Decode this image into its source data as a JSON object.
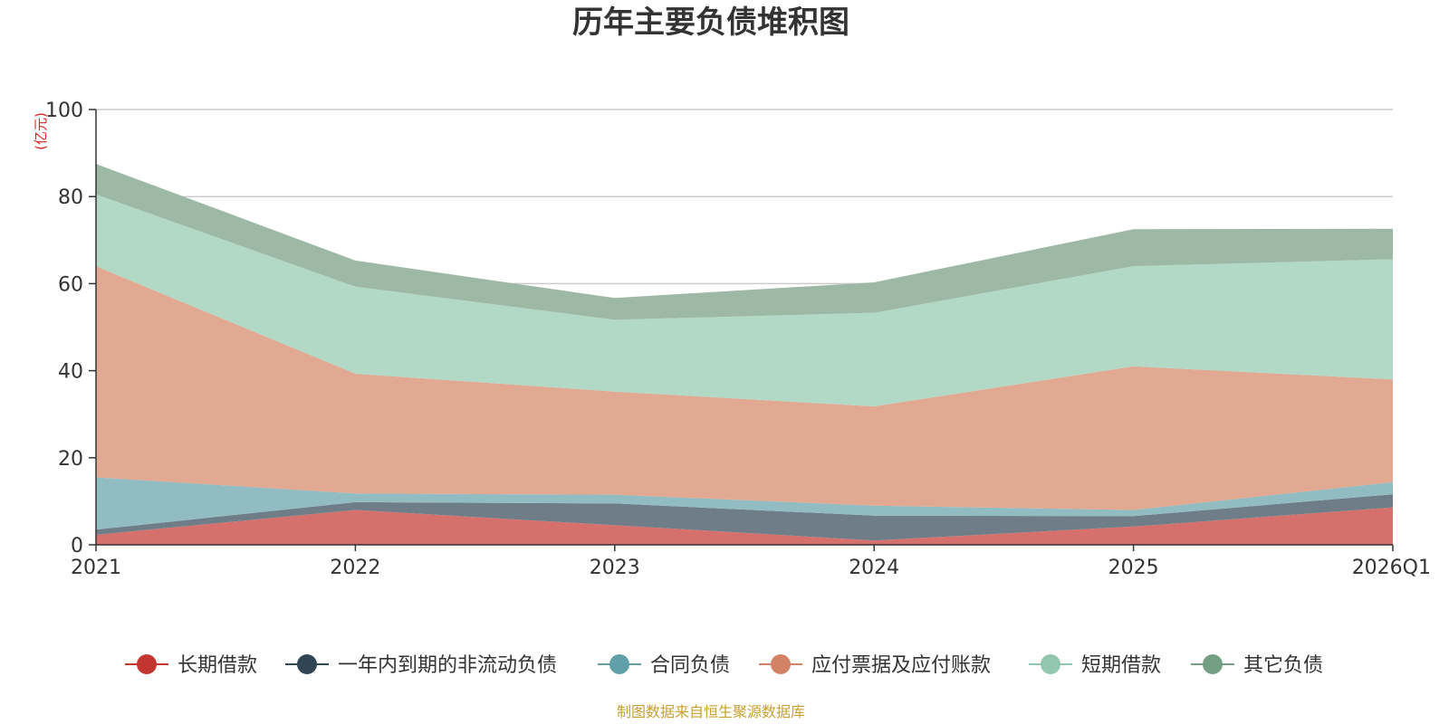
{
  "chart_data": {
    "type": "area",
    "stacked": true,
    "title": "历年主要负债堆积图",
    "unit_label": "(亿元)",
    "x": [
      "2021",
      "2022",
      "2023",
      "2024",
      "2025",
      "2026Q1"
    ],
    "ylim": [
      0,
      100
    ],
    "yticks": [
      "0",
      "20",
      "40",
      "60",
      "80",
      "100"
    ],
    "grid": true,
    "legend_position": "bottom",
    "series": [
      {
        "name": "长期借款",
        "color": "#c23531",
        "fill": "#d5706c",
        "values": [
          2.3,
          8.0,
          4.5,
          1.0,
          4.2,
          8.6
        ]
      },
      {
        "name": "一年内到期的非流动负债",
        "color": "#2f4554",
        "fill": "#6e7d88",
        "values": [
          1.2,
          1.8,
          5.0,
          5.7,
          2.4,
          3.0
        ]
      },
      {
        "name": "合同负债",
        "color": "#61a0a8",
        "fill": "#90bcc2",
        "values": [
          12.0,
          2.0,
          2.0,
          2.3,
          1.4,
          2.8
        ]
      },
      {
        "name": "应付票据及应付账款",
        "color": "#d48265",
        "fill": "#e1a892",
        "values": [
          48.5,
          27.5,
          23.7,
          22.8,
          33.0,
          23.6
        ]
      },
      {
        "name": "短期借款",
        "color": "#91c7ae",
        "fill": "#b2d9c6",
        "values": [
          16.5,
          20.0,
          16.5,
          21.5,
          23.0,
          27.6
        ]
      },
      {
        "name": "其它负债",
        "color": "#749f83",
        "fill": "#9db8a5",
        "values": [
          7.0,
          6.0,
          5.0,
          7.0,
          8.5,
          7.0
        ]
      }
    ],
    "source_note": "制图数据来自恒生聚源数据库"
  }
}
